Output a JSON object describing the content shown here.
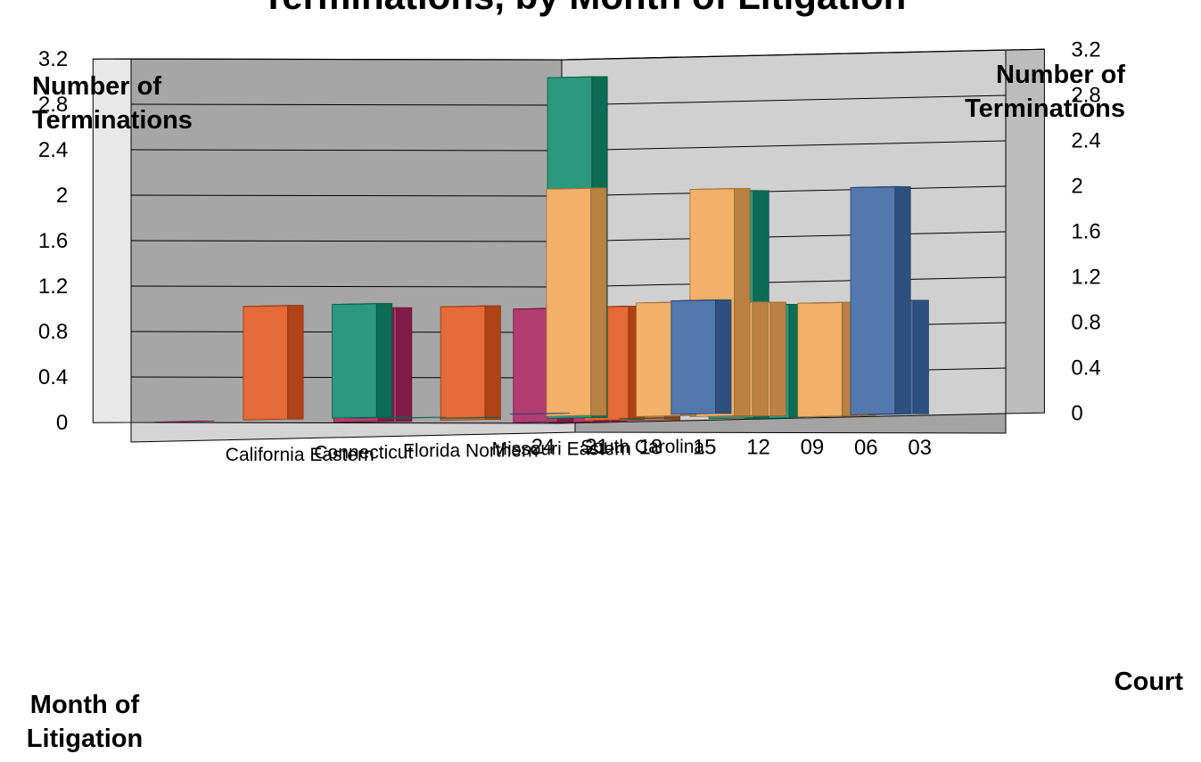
{
  "chart_data": {
    "type": "bar",
    "subtype": "3d-column",
    "title": "Terminations, by Month of Litigation",
    "z_axis_label": "Number of Terminations",
    "x_axis_label": "Month of Litigation",
    "y_axis_label": "Court",
    "z_ticks": [
      "0",
      "0.4",
      "0.8",
      "1.2",
      "1.6",
      "2",
      "2.4",
      "2.8",
      "3.2"
    ],
    "zlim": [
      0,
      3.2
    ],
    "months": [
      "03",
      "06",
      "09",
      "12",
      "15",
      "18",
      "21",
      "24"
    ],
    "month_range": [
      1,
      24
    ],
    "courts": [
      "South Carolina",
      "Missouri Eastern",
      "Florida Northern",
      "Connecticut",
      "California Eastern"
    ],
    "grid": true,
    "series": [
      {
        "name": "South Carolina",
        "color": "#3b66a3",
        "points": [
          {
            "month": 4,
            "value": 1.0
          },
          {
            "month": 5,
            "value": 2.0
          },
          {
            "month": 15,
            "value": 1.0
          },
          {
            "month": 24,
            "value": 0
          }
        ]
      },
      {
        "name": "Missouri Eastern",
        "color": "#f0a654",
        "points": [
          {
            "month": 2,
            "value": 1.0
          },
          {
            "month": 3,
            "value": 1.0
          },
          {
            "month": 7,
            "value": 1.0
          },
          {
            "month": 8,
            "value": 1.0
          },
          {
            "month": 9,
            "value": 2.0
          },
          {
            "month": 12,
            "value": 1.0
          },
          {
            "month": 17,
            "value": 2.0
          }
        ]
      },
      {
        "name": "Florida Northern",
        "color": "#0f8a6c",
        "points": [
          {
            "month": 1,
            "value": 1.0
          },
          {
            "month": 3,
            "value": 2.0
          },
          {
            "month": 8,
            "value": 0
          },
          {
            "month": 12,
            "value": 3.0
          },
          {
            "month": 18,
            "value": 0
          },
          {
            "month": 21,
            "value": 0
          },
          {
            "month": 23,
            "value": 0
          },
          {
            "month": 24,
            "value": 1.0
          }
        ]
      },
      {
        "name": "Connecticut",
        "color": "#e0561c",
        "points": [
          {
            "month": 3,
            "value": 1.0
          },
          {
            "month": 5,
            "value": 1.0
          },
          {
            "month": 13,
            "value": 1.0
          },
          {
            "month": 24,
            "value": 1.0
          }
        ]
      },
      {
        "name": "California Eastern",
        "color": "#a8225c",
        "points": [
          {
            "month": 1,
            "value": 1.0
          },
          {
            "month": 2,
            "value": 1.0
          },
          {
            "month": 4,
            "value": 1.0
          },
          {
            "month": 13,
            "value": 1.0
          },
          {
            "month": 14,
            "value": 1.0
          },
          {
            "month": 24,
            "value": 0
          }
        ]
      }
    ]
  }
}
